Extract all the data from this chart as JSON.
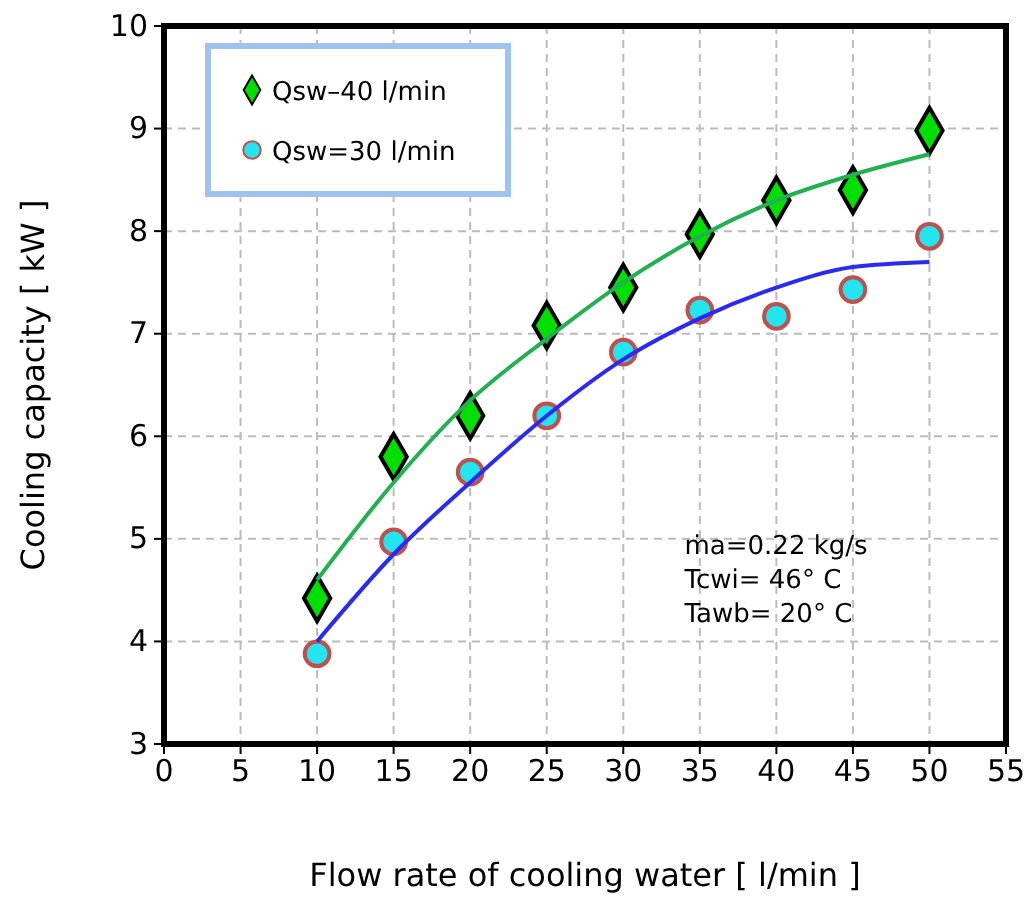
{
  "chart_data": {
    "type": "scatter",
    "xlabel": "Flow  rate of cooling water  [ l/min ]",
    "ylabel": "Cooling capacity  [ kW ]",
    "xlim": [
      0,
      55
    ],
    "xticks": [
      0,
      5,
      10,
      15,
      20,
      25,
      30,
      35,
      40,
      45,
      50,
      55
    ],
    "ylim": [
      3,
      10
    ],
    "yticks": [
      3,
      4,
      5,
      6,
      7,
      8,
      9,
      10
    ],
    "grid": true,
    "legend": "top left",
    "series": [
      {
        "name": "Qsw–40 l/min",
        "color": "#00e000",
        "marker": "diamond",
        "x": [
          10,
          15,
          20,
          25,
          30,
          35,
          40,
          45,
          50
        ],
        "values": [
          4.42,
          5.8,
          6.2,
          7.08,
          7.45,
          7.97,
          8.3,
          8.4,
          8.98
        ]
      },
      {
        "name": "Qsw=30 l/min",
        "color": "#22e5f0",
        "marker": "circle",
        "x": [
          10,
          15,
          20,
          25,
          30,
          35,
          40,
          45,
          50
        ],
        "values": [
          3.88,
          4.97,
          5.65,
          6.2,
          6.82,
          7.23,
          7.17,
          7.43,
          7.95
        ]
      },
      {
        "type": "line",
        "color": "#22b050",
        "marker": "none",
        "x": [
          10,
          15,
          20,
          25,
          30,
          35,
          40,
          45,
          50
        ],
        "values": [
          4.6,
          5.55,
          6.35,
          6.95,
          7.5,
          7.95,
          8.3,
          8.55,
          8.75
        ]
      },
      {
        "type": "line",
        "color": "#2a2af0",
        "marker": "none",
        "x": [
          10,
          15,
          20,
          25,
          30,
          35,
          40,
          45,
          50
        ],
        "values": [
          4.0,
          4.85,
          5.55,
          6.2,
          6.75,
          7.15,
          7.45,
          7.65,
          7.7
        ]
      }
    ],
    "annotations": [
      "ṁa=0.22 kg/s",
      "Tcwi= 46° C",
      "Tawb= 20° C"
    ]
  }
}
